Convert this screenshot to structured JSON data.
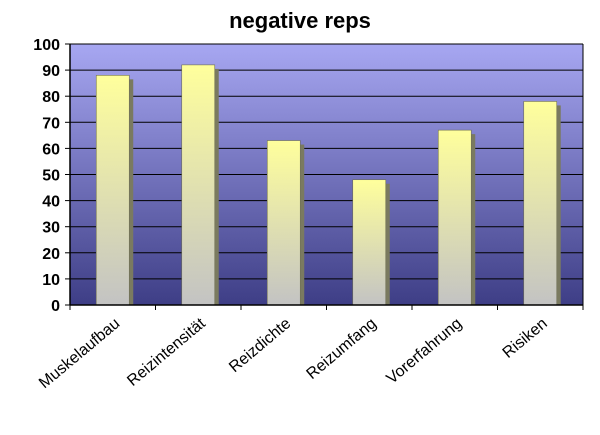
{
  "chart_data": {
    "type": "bar",
    "title": "negative reps",
    "categories": [
      "Muskelaufbau",
      "Reizintensität",
      "Reizdichte",
      "Reizumfang",
      "Vorerfahrung",
      "Risiken"
    ],
    "values": [
      88,
      92,
      63,
      48,
      67,
      78
    ],
    "ylim": [
      0,
      100
    ],
    "yticks": [
      0,
      10,
      20,
      30,
      40,
      50,
      60,
      70,
      80,
      90,
      100
    ],
    "grid": true,
    "legend": "none",
    "colors": {
      "plot_top": "#a7a7f2",
      "plot_bottom": "#3e3e86",
      "bar_top": "#ffff9c",
      "bar_bottom": "#c3c3c3",
      "bar_side": "#7a7a60",
      "gridline": "#000000"
    }
  }
}
